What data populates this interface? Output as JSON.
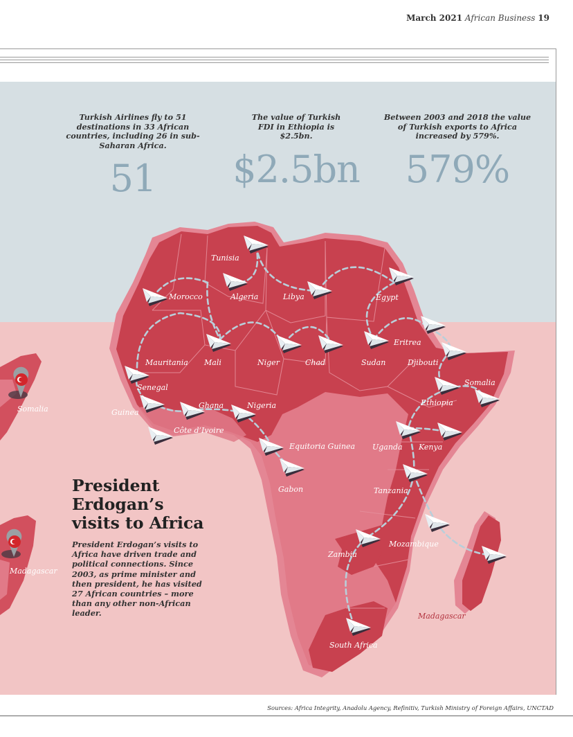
{
  "header": {
    "date": "March 2021",
    "publication": "African Business",
    "page": "19"
  },
  "stats": [
    {
      "caption": "Turkish Airlines fly to 51 destinations in 33 African countries, including 26 in sub-Saharan Africa.",
      "value": "51"
    },
    {
      "caption": "The value of Turkish FDI in Ethiopia is $2.5bn.",
      "value": "$2.5bn"
    },
    {
      "caption": "Between 2003 and 2018 the value of Turkish exports to Africa increased by 579%.",
      "value": "579%"
    }
  ],
  "article": {
    "heading": [
      "President",
      "Erdogan’s",
      "visits to Africa"
    ],
    "body": "President Erdogan’s visits to Africa have driven trade and political connections. Since 2003, as prime minister and then president, he has visited 27 African countries – more than any other non-African leader."
  },
  "map": {
    "countries": [
      "Tunisia",
      "Morocco",
      "Algeria",
      "Libya",
      "Egypt",
      "Eritrea",
      "Mauritania",
      "Mali",
      "Niger",
      "Chad",
      "Sudan",
      "Djibouti",
      "Somalia",
      "Senegal",
      "Ethiopia",
      "Guinea",
      "Ghana",
      "Nigeria",
      "Côte d’Ivoire",
      "Equitoria Guinea",
      "Uganda",
      "Kenya",
      "Gabon",
      "Tanzania",
      "Mozambique",
      "Zambia",
      "Madagascar",
      "South Africa"
    ],
    "inset_labels": [
      "Somalia",
      "Madagascar"
    ],
    "colors": {
      "land": "#c8414f",
      "land_light": "#e17a88",
      "border": "#e88e9a",
      "route": "#b9cfda"
    },
    "icons": [
      "plane-icon",
      "turkey-flag-pin-icon"
    ]
  },
  "sources": "Sources: Africa Integrity, Anadolu Agency, Refinitiv, Turkish Ministry of Foreign Affairs, UNCTAD"
}
